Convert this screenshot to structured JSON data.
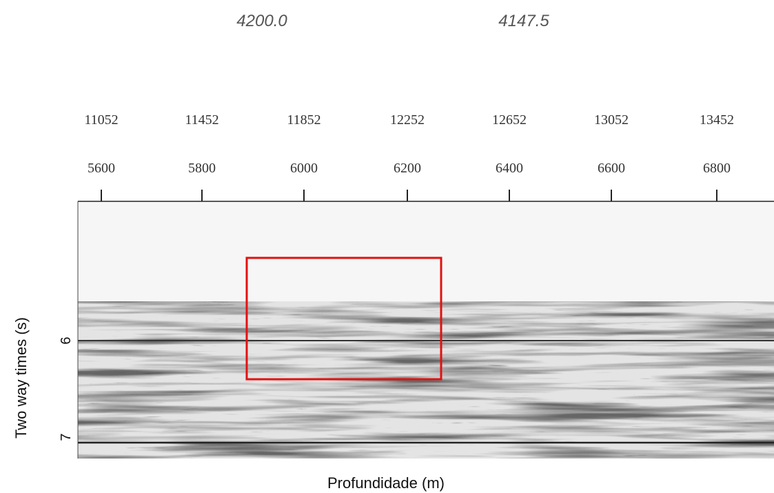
{
  "header": {
    "labels": [
      "4200.0",
      "4147.5"
    ]
  },
  "axis_top": {
    "row1": [
      "11052",
      "11452",
      "11852",
      "12252",
      "12652",
      "13052",
      "13452"
    ],
    "row2": [
      "5600",
      "5800",
      "6000",
      "6200",
      "6400",
      "6600",
      "6800"
    ]
  },
  "axis_left": {
    "title": "Two way times (s)",
    "labels": [
      "6",
      "7"
    ]
  },
  "axis_bottom": {
    "title": "Profundidade (m)"
  }
}
